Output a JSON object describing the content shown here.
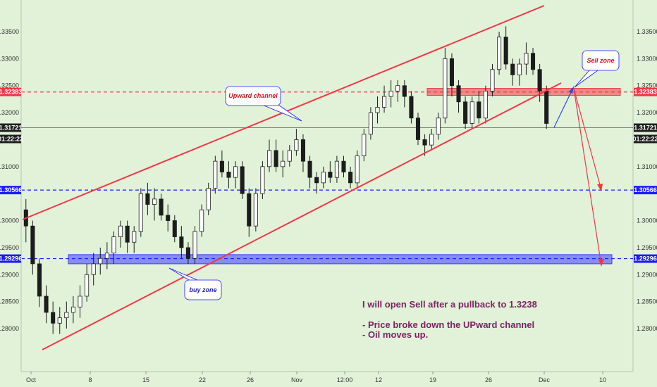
{
  "chart_data": {
    "type": "candlestick",
    "instrument": "",
    "y_axis": {
      "range": [
        1.277,
        1.338
      ],
      "ticks": [
        "1.33500",
        "1.33000",
        "1.32500",
        "1.32000",
        "1.31000",
        "1.30000",
        "1.29500",
        "1.29000",
        "1.28500",
        "1.28000"
      ]
    },
    "x_axis": {
      "ticks": [
        "Oct",
        "8",
        "15",
        "22",
        "26",
        "Nov",
        "12:00",
        "12",
        "19",
        "26",
        "Dec",
        "10"
      ]
    },
    "price_tags": [
      {
        "label": "1.32383",
        "value": 1.32383,
        "color": "#f23645"
      },
      {
        "label": "1.31721",
        "value": 1.31721,
        "color": "#1e1e1e"
      },
      {
        "label": "01:22:22",
        "value": null,
        "color": "#1e1e1e"
      },
      {
        "label": "1.30566",
        "value": 1.30566,
        "color": "#1a1aff"
      },
      {
        "label": "1.29296",
        "value": 1.29296,
        "color": "#1a1aff"
      }
    ],
    "horizontal_levels": [
      {
        "value": 1.32383,
        "color": "#f23645",
        "style": "dashed"
      },
      {
        "value": 1.31721,
        "color": "#555555",
        "style": "solid"
      },
      {
        "value": 1.30566,
        "color": "#1a1aff",
        "style": "dashed"
      },
      {
        "value": 1.29296,
        "color": "#1a1aff",
        "style": "dashed"
      }
    ],
    "zones": [
      {
        "name": "sell",
        "y_low": 1.3232,
        "y_high": 1.3245,
        "color": "#f23645"
      },
      {
        "name": "buy",
        "y_low": 1.292,
        "y_high": 1.2937,
        "color": "#3b3bff"
      }
    ],
    "annotations": {
      "upward_channel": "Upward channel",
      "sell_zone": "Sell zone",
      "buy_zone": "buy zone",
      "note_lines": [
        "I will open Sell after a pullback to 1.3238",
        "- Price broke down the UPward channel",
        "- Oil moves up."
      ]
    },
    "candles": [
      {
        "o": 1.302,
        "h": 1.304,
        "l": 1.296,
        "c": 1.299
      },
      {
        "o": 1.299,
        "h": 1.3,
        "l": 1.29,
        "c": 1.292
      },
      {
        "o": 1.292,
        "h": 1.293,
        "l": 1.284,
        "c": 1.286
      },
      {
        "o": 1.286,
        "h": 1.288,
        "l": 1.281,
        "c": 1.283
      },
      {
        "o": 1.283,
        "h": 1.285,
        "l": 1.279,
        "c": 1.281
      },
      {
        "o": 1.281,
        "h": 1.284,
        "l": 1.279,
        "c": 1.282
      },
      {
        "o": 1.282,
        "h": 1.285,
        "l": 1.28,
        "c": 1.283
      },
      {
        "o": 1.283,
        "h": 1.286,
        "l": 1.281,
        "c": 1.284
      },
      {
        "o": 1.284,
        "h": 1.288,
        "l": 1.282,
        "c": 1.286
      },
      {
        "o": 1.286,
        "h": 1.292,
        "l": 1.285,
        "c": 1.29
      },
      {
        "o": 1.29,
        "h": 1.294,
        "l": 1.288,
        "c": 1.292
      },
      {
        "o": 1.292,
        "h": 1.295,
        "l": 1.29,
        "c": 1.293
      },
      {
        "o": 1.293,
        "h": 1.296,
        "l": 1.291,
        "c": 1.294
      },
      {
        "o": 1.294,
        "h": 1.298,
        "l": 1.292,
        "c": 1.297
      },
      {
        "o": 1.297,
        "h": 1.3,
        "l": 1.295,
        "c": 1.299
      },
      {
        "o": 1.299,
        "h": 1.3,
        "l": 1.294,
        "c": 1.296
      },
      {
        "o": 1.296,
        "h": 1.299,
        "l": 1.294,
        "c": 1.298
      },
      {
        "o": 1.298,
        "h": 1.306,
        "l": 1.297,
        "c": 1.305
      },
      {
        "o": 1.305,
        "h": 1.307,
        "l": 1.301,
        "c": 1.303
      },
      {
        "o": 1.303,
        "h": 1.306,
        "l": 1.3,
        "c": 1.304
      },
      {
        "o": 1.304,
        "h": 1.305,
        "l": 1.3,
        "c": 1.301
      },
      {
        "o": 1.301,
        "h": 1.303,
        "l": 1.298,
        "c": 1.3
      },
      {
        "o": 1.3,
        "h": 1.301,
        "l": 1.296,
        "c": 1.297
      },
      {
        "o": 1.297,
        "h": 1.299,
        "l": 1.293,
        "c": 1.295
      },
      {
        "o": 1.295,
        "h": 1.296,
        "l": 1.292,
        "c": 1.293
      },
      {
        "o": 1.293,
        "h": 1.299,
        "l": 1.292,
        "c": 1.298
      },
      {
        "o": 1.298,
        "h": 1.303,
        "l": 1.297,
        "c": 1.302
      },
      {
        "o": 1.302,
        "h": 1.307,
        "l": 1.301,
        "c": 1.306
      },
      {
        "o": 1.306,
        "h": 1.312,
        "l": 1.305,
        "c": 1.311
      },
      {
        "o": 1.311,
        "h": 1.313,
        "l": 1.308,
        "c": 1.309
      },
      {
        "o": 1.309,
        "h": 1.311,
        "l": 1.306,
        "c": 1.308
      },
      {
        "o": 1.308,
        "h": 1.311,
        "l": 1.306,
        "c": 1.31
      },
      {
        "o": 1.31,
        "h": 1.311,
        "l": 1.304,
        "c": 1.305
      },
      {
        "o": 1.305,
        "h": 1.306,
        "l": 1.297,
        "c": 1.299
      },
      {
        "o": 1.299,
        "h": 1.306,
        "l": 1.298,
        "c": 1.305
      },
      {
        "o": 1.305,
        "h": 1.311,
        "l": 1.304,
        "c": 1.31
      },
      {
        "o": 1.31,
        "h": 1.315,
        "l": 1.309,
        "c": 1.313
      },
      {
        "o": 1.313,
        "h": 1.315,
        "l": 1.309,
        "c": 1.31
      },
      {
        "o": 1.31,
        "h": 1.313,
        "l": 1.308,
        "c": 1.311
      },
      {
        "o": 1.311,
        "h": 1.314,
        "l": 1.31,
        "c": 1.313
      },
      {
        "o": 1.313,
        "h": 1.317,
        "l": 1.312,
        "c": 1.315
      },
      {
        "o": 1.315,
        "h": 1.316,
        "l": 1.309,
        "c": 1.311
      },
      {
        "o": 1.311,
        "h": 1.312,
        "l": 1.306,
        "c": 1.308
      },
      {
        "o": 1.308,
        "h": 1.309,
        "l": 1.305,
        "c": 1.307
      },
      {
        "o": 1.307,
        "h": 1.31,
        "l": 1.306,
        "c": 1.309
      },
      {
        "o": 1.309,
        "h": 1.311,
        "l": 1.307,
        "c": 1.308
      },
      {
        "o": 1.308,
        "h": 1.312,
        "l": 1.307,
        "c": 1.311
      },
      {
        "o": 1.311,
        "h": 1.312,
        "l": 1.308,
        "c": 1.309
      },
      {
        "o": 1.309,
        "h": 1.31,
        "l": 1.306,
        "c": 1.307
      },
      {
        "o": 1.307,
        "h": 1.313,
        "l": 1.306,
        "c": 1.312
      },
      {
        "o": 1.312,
        "h": 1.317,
        "l": 1.311,
        "c": 1.316
      },
      {
        "o": 1.316,
        "h": 1.321,
        "l": 1.315,
        "c": 1.32
      },
      {
        "o": 1.32,
        "h": 1.323,
        "l": 1.318,
        "c": 1.321
      },
      {
        "o": 1.321,
        "h": 1.325,
        "l": 1.32,
        "c": 1.323
      },
      {
        "o": 1.323,
        "h": 1.326,
        "l": 1.321,
        "c": 1.324
      },
      {
        "o": 1.324,
        "h": 1.326,
        "l": 1.322,
        "c": 1.325
      },
      {
        "o": 1.325,
        "h": 1.326,
        "l": 1.321,
        "c": 1.323
      },
      {
        "o": 1.323,
        "h": 1.324,
        "l": 1.318,
        "c": 1.319
      },
      {
        "o": 1.319,
        "h": 1.32,
        "l": 1.314,
        "c": 1.315
      },
      {
        "o": 1.315,
        "h": 1.316,
        "l": 1.312,
        "c": 1.314
      },
      {
        "o": 1.314,
        "h": 1.317,
        "l": 1.313,
        "c": 1.316
      },
      {
        "o": 1.316,
        "h": 1.32,
        "l": 1.315,
        "c": 1.319
      },
      {
        "o": 1.319,
        "h": 1.332,
        "l": 1.318,
        "c": 1.33
      },
      {
        "o": 1.33,
        "h": 1.331,
        "l": 1.323,
        "c": 1.325
      },
      {
        "o": 1.325,
        "h": 1.326,
        "l": 1.32,
        "c": 1.322
      },
      {
        "o": 1.322,
        "h": 1.323,
        "l": 1.317,
        "c": 1.318
      },
      {
        "o": 1.318,
        "h": 1.323,
        "l": 1.317,
        "c": 1.322
      },
      {
        "o": 1.322,
        "h": 1.324,
        "l": 1.318,
        "c": 1.319
      },
      {
        "o": 1.319,
        "h": 1.325,
        "l": 1.318,
        "c": 1.324
      },
      {
        "o": 1.324,
        "h": 1.329,
        "l": 1.323,
        "c": 1.328
      },
      {
        "o": 1.328,
        "h": 1.335,
        "l": 1.327,
        "c": 1.334
      },
      {
        "o": 1.334,
        "h": 1.336,
        "l": 1.328,
        "c": 1.329
      },
      {
        "o": 1.329,
        "h": 1.33,
        "l": 1.325,
        "c": 1.327
      },
      {
        "o": 1.327,
        "h": 1.33,
        "l": 1.325,
        "c": 1.329
      },
      {
        "o": 1.329,
        "h": 1.333,
        "l": 1.327,
        "c": 1.331
      },
      {
        "o": 1.331,
        "h": 1.332,
        "l": 1.327,
        "c": 1.328
      },
      {
        "o": 1.328,
        "h": 1.329,
        "l": 1.322,
        "c": 1.324
      },
      {
        "o": 1.324,
        "h": 1.325,
        "l": 1.317,
        "c": 1.318
      }
    ]
  }
}
